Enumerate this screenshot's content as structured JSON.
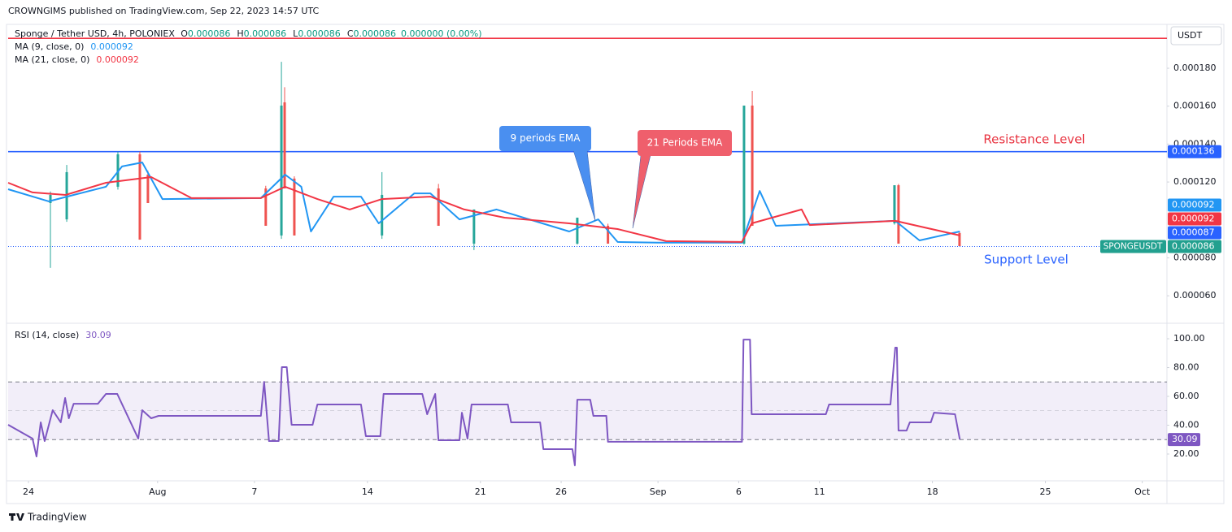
{
  "header": "CROWNGIMS published on TradingView.com, Sep 22, 2023 14:57 UTC",
  "footer": "TradingView",
  "chart_data": [
    {
      "type": "candlestick",
      "title": "Sponge / Tether USD, 4h, POLONIEX",
      "ohlc": [
        {
          "label": "O",
          "value": "0.000086"
        },
        {
          "label": "H",
          "value": "0.000086"
        },
        {
          "label": "L",
          "value": "0.000086"
        },
        {
          "label": "C",
          "value": "0.000086"
        }
      ],
      "change": "0.000000 (0.00%)",
      "currency": "USDT",
      "xlim": [
        -1.26,
        70.53
      ],
      "xticks": [
        {
          "value": 0,
          "label": "24"
        },
        {
          "value": 8,
          "label": "Aug"
        },
        {
          "value": 14,
          "label": "7"
        },
        {
          "value": 21,
          "label": "14"
        },
        {
          "value": 28,
          "label": "21"
        },
        {
          "value": 33,
          "label": "26"
        },
        {
          "value": 39,
          "label": "Sep"
        },
        {
          "value": 44,
          "label": "6"
        },
        {
          "value": 49,
          "label": "11"
        },
        {
          "value": 56,
          "label": "18"
        },
        {
          "value": 63,
          "label": "25"
        },
        {
          "value": 69,
          "label": "Oct"
        }
      ],
      "ylim": [
        4.55e-05,
        0.000201
      ],
      "yticks": [
        {
          "value": 6e-05,
          "label": "0.000060"
        },
        {
          "value": 8e-05,
          "label": "0.000080"
        },
        {
          "value": 0.00012,
          "label": "0.000120"
        },
        {
          "value": 0.00014,
          "label": "0.000140"
        },
        {
          "value": 0.00016,
          "label": "0.000160"
        },
        {
          "value": 0.00018,
          "label": "0.000180"
        }
      ],
      "grid": false,
      "up_color": "#26a69a",
      "down_color": "#ef5350",
      "candles": {
        "x": [
          1.36,
          2.37,
          5.54,
          6.9,
          7.4,
          14.7,
          15.67,
          15.87,
          16.47,
          21.9,
          25.4,
          27.6,
          34.0,
          35.9,
          44.33,
          44.84,
          53.65,
          53.9,
          57.68
        ],
        "open": [
          0.0001089,
          0.0001003,
          0.0001175,
          0.0001346,
          0.0001239,
          0.0001166,
          9.18e-05,
          0.000162,
          0.0001218,
          9.18e-05,
          0.0001166,
          8.75e-05,
          8.75e-05,
          9.69e-05,
          8.75e-05,
          0.0001603,
          9.82e-05,
          0.0001183,
          9.31e-05
        ],
        "high": [
          0.000115,
          0.000129,
          0.000136,
          0.000136,
          0.000126,
          0.000118,
          0.0001834,
          0.00017,
          0.000123,
          0.0001252,
          0.000119,
          0.0001055,
          0.0001012,
          9.8e-05,
          0.0001603,
          0.000168,
          0.0001183,
          0.000119,
          9.4e-05
        ],
        "low": [
          7.47e-05,
          9.9e-05,
          0.000116,
          8.96e-05,
          0.0001089,
          9.69e-05,
          9e-05,
          0.0001166,
          9.18e-05,
          9e-05,
          9.69e-05,
          8.41e-05,
          8.7e-05,
          8.75e-05,
          8.7e-05,
          9.69e-05,
          9.75e-05,
          8.75e-05,
          8.62e-05
        ],
        "close": [
          0.0001132,
          0.0001252,
          0.0001346,
          8.96e-05,
          0.0001089,
          9.69e-05,
          0.0001603,
          0.0001166,
          9.18e-05,
          0.0001132,
          9.69e-05,
          0.0001055,
          0.0001012,
          8.75e-05,
          0.0001603,
          9.69e-05,
          0.0001183,
          8.75e-05,
          8.62e-05
        ]
      },
      "series": [
        {
          "name": "MA (9, close, 0)",
          "value_label": "0.000092",
          "color": "#2196f3",
          "x": [
            -1.26,
            1.26,
            2.8,
            4.8,
            5.8,
            7.05,
            8.3,
            14.4,
            15.9,
            16.9,
            17.5,
            18.9,
            20.6,
            21.7,
            23.9,
            24.9,
            26.7,
            29,
            33.5,
            35.3,
            36.5,
            39,
            44.2,
            45.3,
            46.3,
            53.7,
            55.2,
            57.7
          ],
          "values": [
            0.0001162,
            0.0001098,
            0.0001132,
            0.0001175,
            0.0001282,
            0.0001303,
            0.000111,
            0.0001115,
            0.0001239,
            0.0001175,
            9.39e-05,
            0.0001123,
            0.0001123,
            9.82e-05,
            0.000114,
            0.000114,
            0.0001003,
            0.0001055,
            9.39e-05,
            0.0001003,
            8.84e-05,
            8.8e-05,
            8.8e-05,
            0.0001153,
            9.69e-05,
            9.95e-05,
            8.92e-05,
            9.39e-05
          ]
        },
        {
          "name": "MA (21, close, 0)",
          "value_label": "0.000092",
          "color": "#f23645",
          "x": [
            -1.26,
            0.25,
            2.3,
            4.8,
            7.6,
            10.1,
            14.4,
            15.9,
            17.9,
            19.9,
            21.9,
            24.9,
            27,
            29.5,
            33.5,
            36.5,
            39.5,
            44.2,
            44.8,
            47.9,
            48.4,
            53.7,
            57.7
          ],
          "values": [
            0.0001196,
            0.0001145,
            0.0001132,
            0.0001196,
            0.0001226,
            0.0001115,
            0.0001115,
            0.0001175,
            0.000111,
            0.0001055,
            0.000111,
            0.0001123,
            0.0001055,
            0.0001012,
            9.82e-05,
            9.52e-05,
            8.88e-05,
            8.84e-05,
            9.82e-05,
            0.0001055,
            9.73e-05,
            9.95e-05,
            9.18e-05
          ]
        }
      ],
      "levels": [
        {
          "value": 0.000136,
          "label": "0.000136",
          "color": "#2962ff",
          "style": "solid"
        },
        {
          "value": 8.6e-05,
          "color": "#2962ff",
          "style": "dotted"
        },
        {
          "value": 0.0001958,
          "color": "#f23645",
          "style": "solid"
        }
      ],
      "price_labels": [
        {
          "value": 9.2e-05,
          "label": "0.000092",
          "color": "#2196f3"
        },
        {
          "value": 9.2e-05,
          "label": "0.000092",
          "color": "#f23645"
        },
        {
          "value": 8.7e-05,
          "label": "0.000087",
          "color": "#2962ff"
        },
        {
          "name": "SPONGEUSDT",
          "value": 8.6e-05,
          "label": "0.000086",
          "color": "#22a08f"
        }
      ],
      "annotations": [
        {
          "text": "9 periods EMA",
          "color": "#4a8ff0"
        },
        {
          "text": "21 Periods EMA",
          "color": "#ef5f6c"
        },
        {
          "text": "Resistance Level",
          "color": "#e8323f"
        },
        {
          "text": "Support Level",
          "color": "#2962ff"
        }
      ]
    },
    {
      "type": "line",
      "name": "RSI (14, close)",
      "value_label": "30.09",
      "color": "#7e57c2",
      "ylim": [
        1.4,
        109.6
      ],
      "yticks": [
        {
          "value": 20,
          "label": "20.00"
        },
        {
          "value": 40,
          "label": "40.00"
        },
        {
          "value": 60,
          "label": "60.00"
        },
        {
          "value": 80,
          "label": "80.00"
        },
        {
          "value": 100,
          "label": "100.00"
        }
      ],
      "bands": [
        70,
        50,
        30
      ],
      "x": [
        -1.26,
        0.25,
        0.5,
        0.76,
        1.0,
        1.5,
        2.0,
        2.27,
        2.5,
        2.8,
        4.3,
        4.8,
        5.5,
        6.8,
        7.05,
        7.6,
        8.06,
        14.4,
        14.6,
        14.9,
        15.5,
        15.7,
        16,
        16.3,
        17.6,
        17.9,
        20.6,
        20.9,
        21.8,
        22,
        24.4,
        24.7,
        25.2,
        25.4,
        26.7,
        26.85,
        27.2,
        27.45,
        29.7,
        29.9,
        31.7,
        31.9,
        33.7,
        33.85,
        34.0,
        34.8,
        35,
        35.8,
        35.9,
        44.2,
        44.3,
        44.7,
        44.8,
        49.4,
        49.6,
        53.4,
        53.7,
        53.8,
        53.9,
        54.4,
        54.6,
        55.9,
        56.1,
        57.4,
        57.7
      ],
      "values": [
        40.3,
        30.7,
        18.3,
        42,
        29,
        50.4,
        42,
        58.9,
        44.8,
        54.9,
        54.9,
        61.7,
        61.7,
        30.7,
        50.4,
        44.8,
        46.5,
        46.5,
        70.1,
        29,
        29,
        80.3,
        80.3,
        40.3,
        40.3,
        54.4,
        54.4,
        32.4,
        32.4,
        61.7,
        61.7,
        47.6,
        61.7,
        29.6,
        29.6,
        48.7,
        30.7,
        54.4,
        54.4,
        42,
        42,
        23.4,
        23.4,
        12.1,
        57.7,
        57.7,
        46.5,
        46.5,
        28.5,
        28.5,
        99.4,
        99.4,
        47.6,
        47.6,
        54.4,
        54.4,
        93.8,
        93.8,
        36.3,
        36.3,
        42,
        42,
        48.7,
        47.6,
        30.09
      ]
    }
  ]
}
